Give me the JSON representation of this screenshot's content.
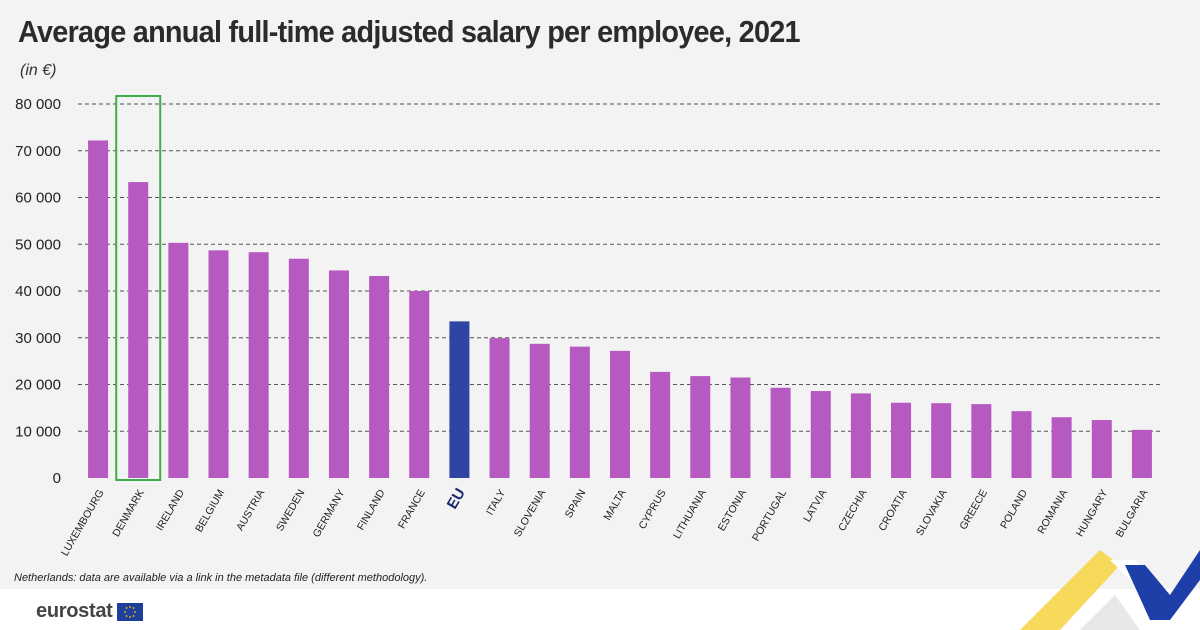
{
  "title": "Average annual full-time adjusted salary per employee, 2021",
  "unit": "(in €)",
  "footnote": "Netherlands: data are available via a link in the metadata file (different methodology).",
  "brand": {
    "logo_text": "eurostat"
  },
  "colors": {
    "bar": "#b659c1",
    "eu_bar": "#2e45a4",
    "highlight_box": "#3fae4a",
    "grid": "#555555"
  },
  "chart_data": {
    "type": "bar",
    "title": "Average annual full-time adjusted salary per employee, 2021",
    "ylabel": "(in €)",
    "xlabel": "",
    "ylim": [
      0,
      80000
    ],
    "yticks": [
      0,
      10000,
      20000,
      30000,
      40000,
      50000,
      60000,
      70000,
      80000
    ],
    "ytick_labels": [
      "0",
      "10 000",
      "20 000",
      "30 000",
      "40 000",
      "50 000",
      "60 000",
      "70 000",
      "80 000"
    ],
    "grid": "dashed horizontal",
    "highlight": "DENMARK",
    "emphasis": "EU",
    "categories": [
      "LUXEMBOURG",
      "DENMARK",
      "IRELAND",
      "BELGIUM",
      "AUSTRIA",
      "SWEDEN",
      "GERMANY",
      "FINLAND",
      "FRANCE",
      "EU",
      "ITALY",
      "SLOVENIA",
      "SPAIN",
      "MALTA",
      "CYPRUS",
      "LITHUANIA",
      "ESTONIA",
      "PORTUGAL",
      "LATVIA",
      "CZECHIA",
      "CROATIA",
      "SLOVAKIA",
      "GREECE",
      "POLAND",
      "ROMANIA",
      "HUNGARY",
      "BULGARIA"
    ],
    "values": [
      72200,
      63300,
      50300,
      48700,
      48300,
      46900,
      44400,
      43200,
      40000,
      33500,
      29900,
      28700,
      28100,
      27200,
      22700,
      21800,
      21500,
      19300,
      18600,
      18100,
      16100,
      16000,
      15800,
      14300,
      13000,
      12400,
      10300
    ]
  }
}
